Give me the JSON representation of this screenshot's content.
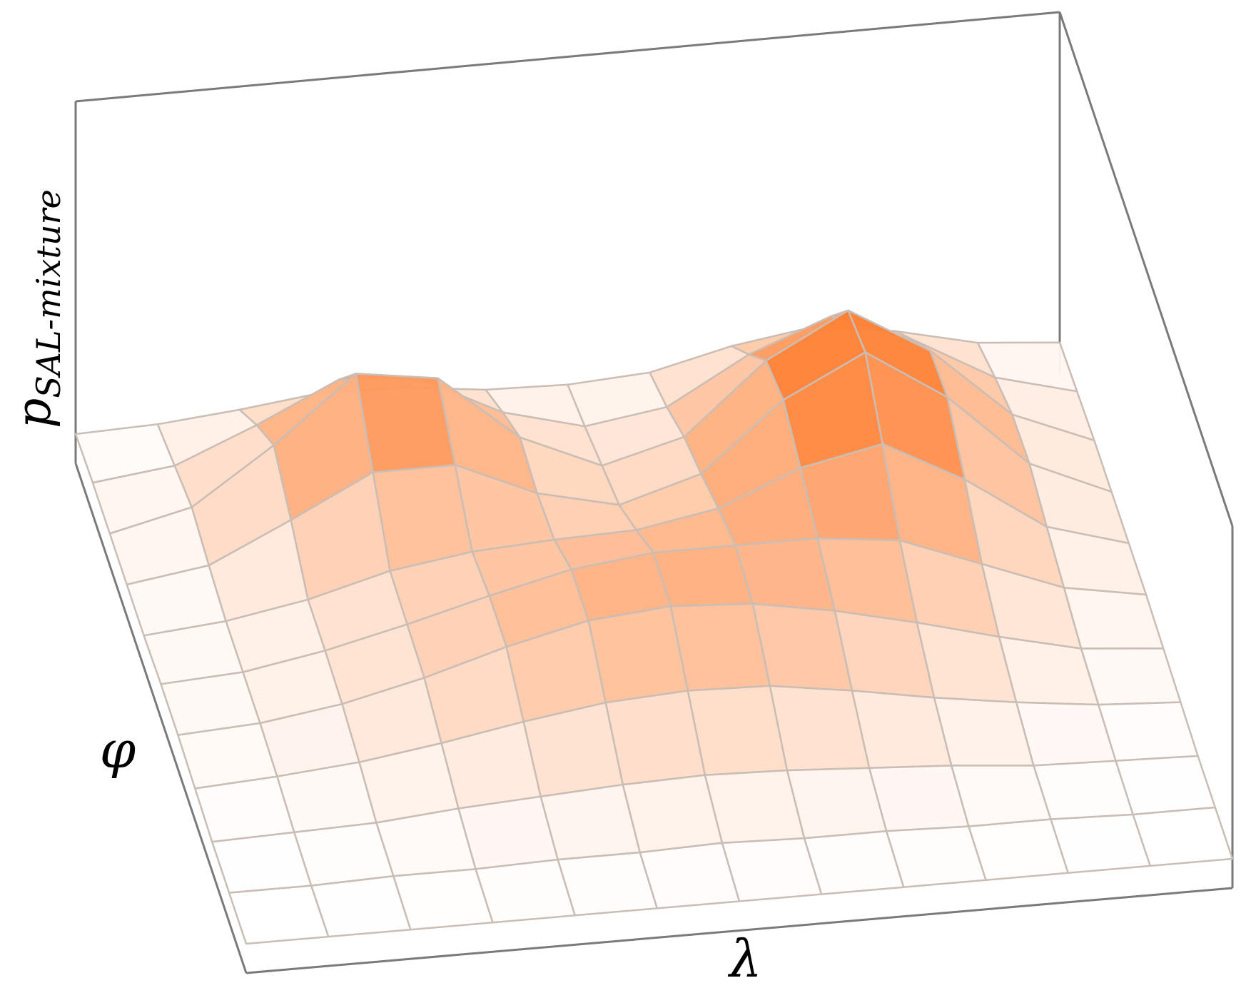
{
  "chart_data": {
    "type": "surface",
    "zlabel": {
      "base": "p",
      "subscript": "SAL-mixture"
    },
    "xlabel": "λ",
    "ylabel": "φ",
    "color": "#ff6a10",
    "zlim": [
      0,
      1.4
    ],
    "z": [
      [
        0.0,
        0.01,
        0.04,
        0.08,
        0.07,
        0.03,
        0.02,
        0.04,
        0.12,
        0.17,
        0.12,
        0.04,
        0.01
      ],
      [
        0.01,
        0.05,
        0.19,
        0.35,
        0.32,
        0.15,
        0.06,
        0.11,
        0.3,
        0.43,
        0.3,
        0.11,
        0.02
      ],
      [
        0.01,
        0.09,
        0.32,
        0.59,
        0.54,
        0.26,
        0.11,
        0.2,
        0.49,
        0.67,
        0.47,
        0.17,
        0.03
      ],
      [
        0.01,
        0.06,
        0.22,
        0.39,
        0.39,
        0.24,
        0.16,
        0.26,
        0.54,
        0.71,
        0.49,
        0.18,
        0.03
      ],
      [
        0.01,
        0.04,
        0.1,
        0.19,
        0.24,
        0.26,
        0.27,
        0.33,
        0.47,
        0.54,
        0.36,
        0.13,
        0.03
      ],
      [
        0.02,
        0.04,
        0.1,
        0.18,
        0.27,
        0.35,
        0.39,
        0.39,
        0.39,
        0.35,
        0.22,
        0.09,
        0.03
      ],
      [
        0.02,
        0.04,
        0.09,
        0.17,
        0.27,
        0.35,
        0.38,
        0.36,
        0.3,
        0.22,
        0.13,
        0.05,
        0.02
      ],
      [
        0.01,
        0.03,
        0.06,
        0.11,
        0.17,
        0.22,
        0.24,
        0.23,
        0.18,
        0.12,
        0.07,
        0.03,
        0.01
      ],
      [
        0.0,
        0.01,
        0.02,
        0.05,
        0.07,
        0.09,
        0.1,
        0.09,
        0.07,
        0.05,
        0.02,
        0.01,
        0.0
      ],
      [
        0.0,
        0.0,
        0.01,
        0.01,
        0.02,
        0.02,
        0.03,
        0.02,
        0.02,
        0.01,
        0.01,
        0.0,
        0.0
      ],
      [
        0,
        0,
        0,
        0,
        0,
        0,
        0,
        0,
        0,
        0,
        0,
        0,
        0
      ]
    ]
  }
}
